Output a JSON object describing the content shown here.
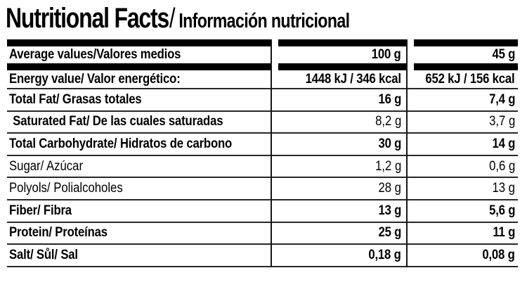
{
  "title": {
    "main": "Nutritional Facts",
    "separator": "/",
    "secondary": "Información nutricional"
  },
  "table": {
    "header": {
      "label": "Average values/Valores medios",
      "per_100g": "100 g",
      "per_45g": "45 g"
    },
    "rows": [
      {
        "label": "Energy value/ Valor energético:",
        "per_100g": "1448 kJ / 346 kcal",
        "per_45g": "652 kJ / 156 kcal"
      },
      {
        "label": "Total Fat/ Grasas totales",
        "per_100g": "16 g",
        "per_45g": "7,4 g"
      },
      {
        "label": "Saturated Fat/ De las cuales saturadas",
        "per_100g": "8,2 g",
        "per_45g": "3,7 g"
      },
      {
        "label": "Total Carbohydrate/ Hidratos de carbono",
        "per_100g": "30 g",
        "per_45g": "14 g"
      },
      {
        "label": "Sugar/ Azúcar",
        "per_100g": "1,2 g",
        "per_45g": "0,6 g"
      },
      {
        "label": "Polyols/ Polialcoholes",
        "per_100g": "28 g",
        "per_45g": "13 g"
      },
      {
        "label": "Fiber/ Fibra",
        "per_100g": "13 g",
        "per_45g": "5,6 g"
      },
      {
        "label": "Protein/ Proteínas",
        "per_100g": "25 g",
        "per_45g": "11 g"
      },
      {
        "label": "Salt/ Sůl/ Sal",
        "per_100g": "0,18 g",
        "per_45g": "0,08 g"
      }
    ]
  },
  "colors": {
    "text": "#000000",
    "bar": "#000000",
    "rule": "#272727",
    "background": "#ffffff"
  }
}
